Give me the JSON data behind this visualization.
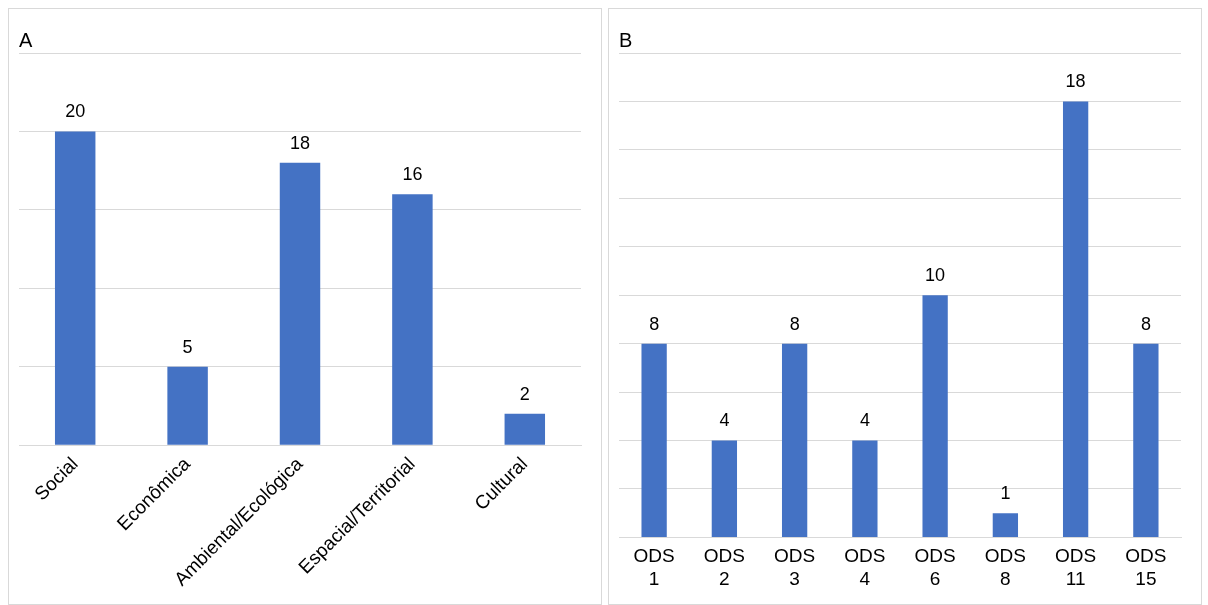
{
  "chart_data": [
    {
      "type": "bar",
      "title": "A",
      "categories": [
        "Social",
        "Econômica",
        "Ambiental/Ecológica",
        "Espacial/Territorial",
        "Cultural"
      ],
      "values": [
        20,
        5,
        18,
        16,
        2
      ],
      "color": "#4472c4",
      "ylim": [
        0,
        25
      ],
      "yticks": [
        {
          "value": 0,
          "label": null
        },
        {
          "value": 5,
          "label": null
        },
        {
          "value": 10,
          "label": null
        },
        {
          "value": 15,
          "label": null
        },
        {
          "value": 20,
          "label": null
        },
        {
          "value": 25,
          "label": null
        }
      ],
      "tick_labels": "x",
      "grid": "y",
      "data_labels": true,
      "legend": false
    },
    {
      "type": "bar",
      "title": "B",
      "categories": [
        "ODS 1",
        "ODS 2",
        "ODS 3",
        "ODS 4",
        "ODS 6",
        "ODS 8",
        "ODS 11",
        "ODS 15"
      ],
      "values": [
        8,
        4,
        8,
        4,
        10,
        1,
        18,
        8
      ],
      "color": "#4472c4",
      "ylim": [
        0,
        20
      ],
      "yticks": [
        {
          "value": 0,
          "label": null
        },
        {
          "value": 2,
          "label": null
        },
        {
          "value": 4,
          "label": null
        },
        {
          "value": 6,
          "label": null
        },
        {
          "value": 8,
          "label": null
        },
        {
          "value": 10,
          "label": null
        },
        {
          "value": 12,
          "label": null
        },
        {
          "value": 14,
          "label": null
        },
        {
          "value": 16,
          "label": null
        },
        {
          "value": 18,
          "label": null
        },
        {
          "value": 20,
          "label": null
        }
      ],
      "tick_labels": "x",
      "grid": "y",
      "data_labels": true,
      "legend": false
    }
  ]
}
